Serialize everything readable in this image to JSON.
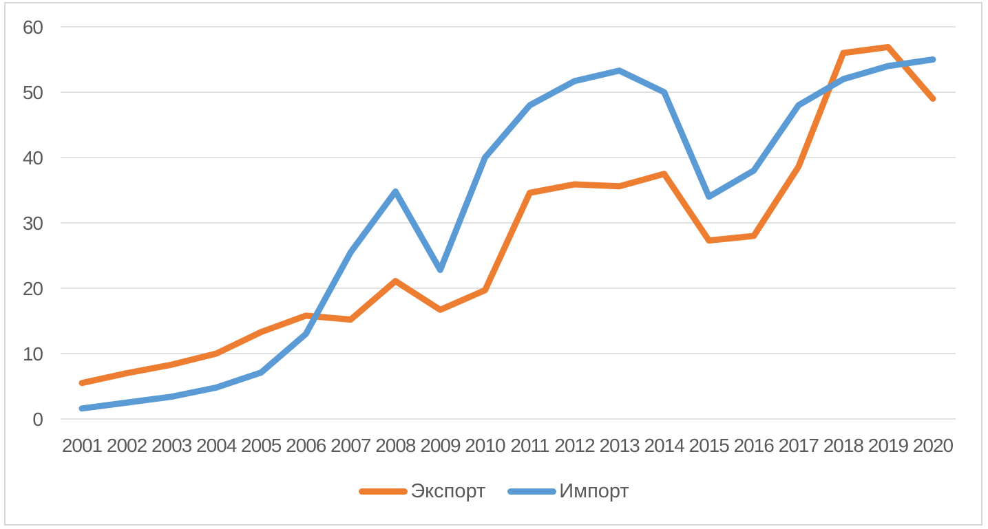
{
  "chart_data": {
    "type": "line",
    "categories": [
      "2001",
      "2002",
      "2003",
      "2004",
      "2005",
      "2006",
      "2007",
      "2008",
      "2009",
      "2010",
      "2011",
      "2012",
      "2013",
      "2014",
      "2015",
      "2016",
      "2017",
      "2018",
      "2019",
      "2020"
    ],
    "series": [
      {
        "name": "Экспорт",
        "color": "#ED7D31",
        "values": [
          5.5,
          7.0,
          8.3,
          10.0,
          13.3,
          15.8,
          15.2,
          21.1,
          16.7,
          19.7,
          34.6,
          35.9,
          35.6,
          37.5,
          27.3,
          28.0,
          38.6,
          56.0,
          56.9,
          49.0
        ]
      },
      {
        "name": "Импорт",
        "color": "#5B9BD5",
        "values": [
          1.6,
          2.5,
          3.4,
          4.8,
          7.1,
          13.0,
          25.5,
          34.8,
          22.8,
          40.0,
          48.0,
          51.7,
          53.3,
          50.0,
          34.0,
          38.0,
          48.0,
          52.0,
          54.0,
          55.0
        ]
      }
    ],
    "title": "",
    "xlabel": "",
    "ylabel": "",
    "ylim": [
      0,
      60
    ],
    "yticks": [
      0,
      10,
      20,
      30,
      40,
      50,
      60
    ],
    "grid": true,
    "legend_position": "bottom",
    "gridline_color": "#D9D9D9",
    "label_color": "#595959",
    "frame_color": "#D6D6D6",
    "background": "#FFFFFF"
  }
}
